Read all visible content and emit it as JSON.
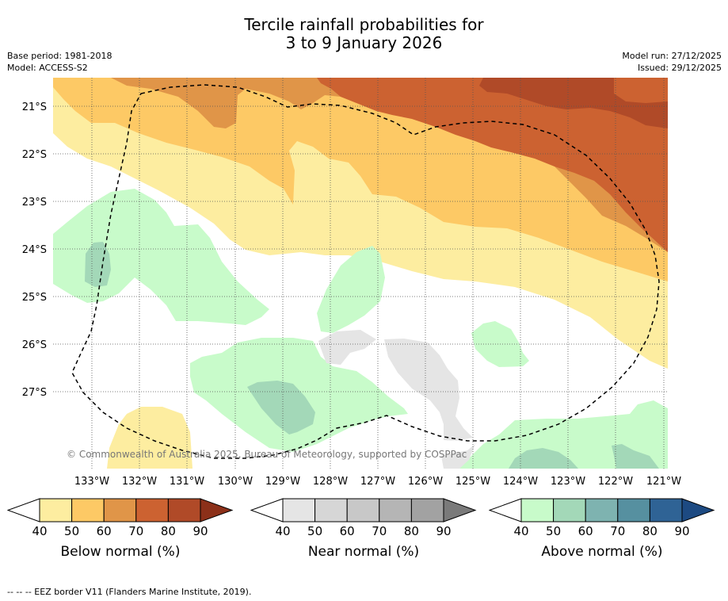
{
  "title": {
    "line1": "Tercile rainfall probabilities for",
    "line2": "3 to 9 January 2026"
  },
  "info_left": {
    "base_period": "Base period: 1981-2018",
    "model": "Model: ACCESS-S2"
  },
  "info_right": {
    "model_run": "Model run: 27/12/2025",
    "issued": "Issued: 29/12/2025"
  },
  "map": {
    "lat_labels": [
      "21°S",
      "22°S",
      "23°S",
      "24°S",
      "25°S",
      "26°S",
      "27°S"
    ],
    "lon_labels": [
      "133°W",
      "132°W",
      "131°W",
      "130°W",
      "129°W",
      "128°W",
      "127°W",
      "126°W",
      "125°W",
      "124°W",
      "123°W",
      "122°W",
      "121°W"
    ],
    "copyright": "© Commonwealth of Australia 2025, Bureau of Meteorology, supported by COSPPac"
  },
  "legends": [
    {
      "label": "Below normal (%)",
      "ticks": [
        "40",
        "50",
        "60",
        "70",
        "80",
        "90"
      ],
      "colors": [
        "#fdeda0",
        "#fdc965",
        "#e09548",
        "#cc6231",
        "#b04a28",
        "#8c3019"
      ]
    },
    {
      "label": "Near normal (%)",
      "ticks": [
        "40",
        "50",
        "60",
        "70",
        "80",
        "90"
      ],
      "colors": [
        "#e5e5e5",
        "#d6d6d6",
        "#c8c8c8",
        "#b5b5b5",
        "#a2a2a2",
        "#7a7a7a"
      ]
    },
    {
      "label": "Above normal (%)",
      "ticks": [
        "40",
        "50",
        "60",
        "70",
        "80",
        "90"
      ],
      "colors": [
        "#c8fbca",
        "#a3d8b8",
        "#7eb3b0",
        "#5690a0",
        "#2f6395",
        "#1d4a82"
      ]
    }
  ],
  "footnote": "-- -- -- EEZ border V11 (Flanders Marine Institute, 2019)."
}
